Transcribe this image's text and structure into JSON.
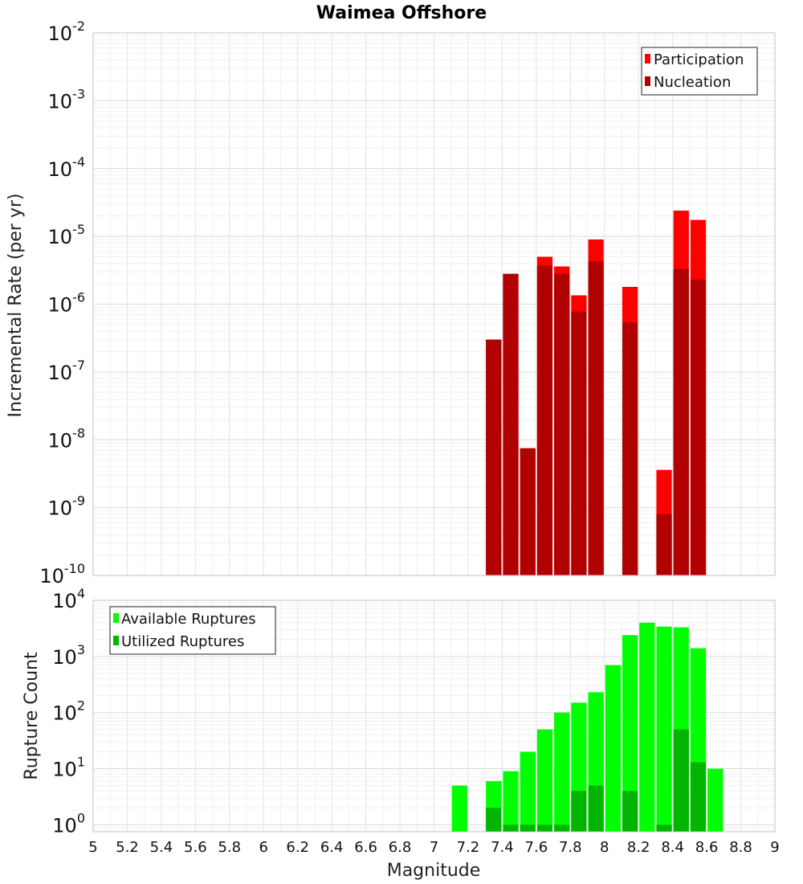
{
  "chart_data": [
    {
      "type": "bar",
      "title": "Waimea Offshore",
      "ylabel": "Incremental Rate (per yr)",
      "xlabel": "",
      "yscale": "log",
      "ylim": [
        1e-10,
        0.01
      ],
      "xlim": [
        5,
        9
      ],
      "grid": true,
      "legend_position": "top-right",
      "bar_width": 0.1,
      "x": [
        7.35,
        7.45,
        7.55,
        7.65,
        7.75,
        7.85,
        7.95,
        8.15,
        8.35,
        8.45,
        8.55
      ],
      "series": [
        {
          "name": "Participation",
          "color": "#ff0000",
          "values": [
            3e-07,
            2.8e-06,
            7.5e-09,
            5e-06,
            3.6e-06,
            1.35e-06,
            9e-06,
            1.8e-06,
            3.6e-09,
            2.4e-05,
            1.75e-05
          ]
        },
        {
          "name": "Nucleation",
          "color": "#b00000",
          "values": [
            3e-07,
            2.8e-06,
            7.5e-09,
            3.7e-06,
            2.8e-06,
            7.8e-07,
            4.3e-06,
            5.4e-07,
            8e-10,
            3.3e-06,
            2.3e-06
          ]
        }
      ]
    },
    {
      "type": "bar",
      "title": "",
      "ylabel": "Rupture Count",
      "xlabel": "Magnitude",
      "yscale": "log",
      "ylim": [
        0.75,
        10000
      ],
      "xlim": [
        5,
        9
      ],
      "grid": true,
      "legend_position": "top-left",
      "bar_width": 0.1,
      "x": [
        7.15,
        7.35,
        7.45,
        7.55,
        7.65,
        7.75,
        7.85,
        7.95,
        8.05,
        8.15,
        8.25,
        8.35,
        8.45,
        8.55,
        8.65
      ],
      "x_ticks": [
        "5",
        "5.2",
        "5.4",
        "5.6",
        "5.8",
        "6",
        "6.2",
        "6.4",
        "6.6",
        "6.8",
        "7",
        "7.2",
        "7.4",
        "7.6",
        "7.8",
        "8",
        "8.2",
        "8.4",
        "8.6",
        "8.8",
        "9"
      ],
      "series": [
        {
          "name": "Available Ruptures",
          "color": "#00ff00",
          "values": [
            5,
            6,
            9,
            20,
            50,
            100,
            150,
            230,
            700,
            2400,
            4000,
            3400,
            3300,
            1400,
            10
          ]
        },
        {
          "name": "Utilized Ruptures",
          "color": "#00b400",
          "values": [
            null,
            2,
            1,
            1,
            1,
            1,
            4,
            5,
            null,
            4,
            null,
            1,
            50,
            13,
            null
          ]
        }
      ]
    }
  ]
}
